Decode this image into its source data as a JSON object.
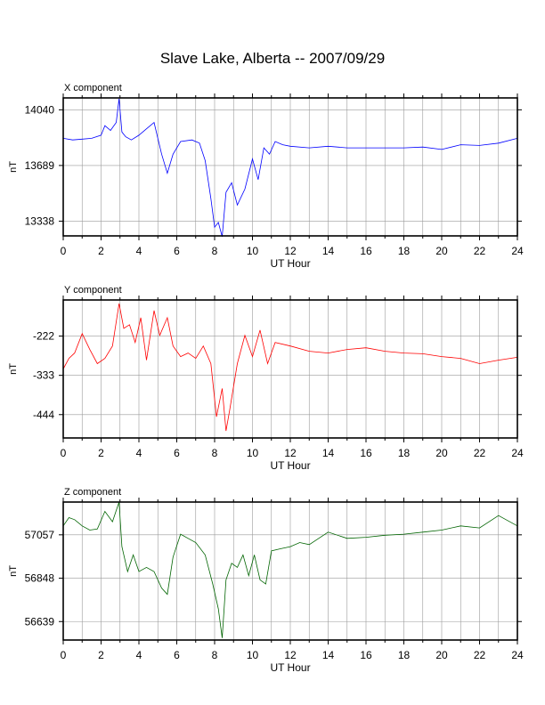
{
  "page": {
    "title": "Slave Lake, Alberta -- 2007/09/29"
  },
  "chart_data": [
    {
      "type": "line",
      "title": "X component",
      "xlabel": "UT Hour",
      "ylabel": "nT",
      "xlim": [
        0,
        24
      ],
      "ylim": [
        13245,
        14115
      ],
      "xticks": [
        0,
        2,
        4,
        6,
        8,
        10,
        12,
        14,
        16,
        18,
        20,
        22,
        24
      ],
      "xtick_labels": [
        "0",
        "2",
        "4",
        "6",
        "8",
        "10",
        "12",
        "14",
        "16",
        "18",
        "20",
        "22",
        "24"
      ],
      "yticks": [
        13338,
        13689,
        14040
      ],
      "ytick_labels": [
        "13338",
        "13689",
        "14040"
      ],
      "grid": true,
      "color": "#0000ff",
      "series": [
        {
          "x": [
            0,
            0.5,
            1,
            1.5,
            2,
            2.2,
            2.5,
            2.8,
            2.95,
            3.1,
            3.3,
            3.6,
            4,
            4.4,
            4.8,
            5.2,
            5.5,
            5.8,
            6.2,
            6.8,
            7.2,
            7.5,
            7.8,
            8,
            8.2,
            8.4,
            8.6,
            8.9,
            9.2,
            9.6,
            10,
            10.3,
            10.6,
            10.9,
            11.2,
            11.6,
            12,
            13,
            14,
            15,
            16,
            17,
            18,
            19,
            20,
            21,
            22,
            23,
            24
          ],
          "y": [
            13860,
            13850,
            13855,
            13860,
            13880,
            13940,
            13910,
            13960,
            14110,
            13900,
            13870,
            13850,
            13880,
            13920,
            13960,
            13760,
            13640,
            13760,
            13840,
            13850,
            13830,
            13720,
            13480,
            13300,
            13330,
            13240,
            13520,
            13580,
            13440,
            13540,
            13730,
            13600,
            13800,
            13760,
            13840,
            13820,
            13810,
            13800,
            13810,
            13800,
            13800,
            13800,
            13800,
            13805,
            13790,
            13820,
            13815,
            13830,
            13860
          ]
        }
      ]
    },
    {
      "type": "line",
      "title": "Y component",
      "xlabel": "UT Hour",
      "ylabel": "nT",
      "xlim": [
        0,
        24
      ],
      "ylim": [
        -510,
        -120
      ],
      "xticks": [
        0,
        2,
        4,
        6,
        8,
        10,
        12,
        14,
        16,
        18,
        20,
        22,
        24
      ],
      "xtick_labels": [
        "0",
        "2",
        "4",
        "6",
        "8",
        "10",
        "12",
        "14",
        "16",
        "18",
        "20",
        "22",
        "24"
      ],
      "yticks": [
        -222,
        -333,
        -444
      ],
      "ytick_labels": [
        "-222",
        "-333",
        "-444"
      ],
      "grid": true,
      "color": "#ff0000",
      "series": [
        {
          "x": [
            0,
            0.3,
            0.6,
            1,
            1.4,
            1.8,
            2.2,
            2.6,
            2.95,
            3.2,
            3.5,
            3.8,
            4.1,
            4.4,
            4.8,
            5.1,
            5.5,
            5.8,
            6.2,
            6.6,
            7,
            7.4,
            7.8,
            8.1,
            8.4,
            8.6,
            8.8,
            9.2,
            9.6,
            10,
            10.4,
            10.8,
            11.2,
            12,
            13,
            14,
            15,
            16,
            17,
            18,
            19,
            20,
            21,
            22,
            23,
            24
          ],
          "y": [
            -315,
            -285,
            -270,
            -215,
            -260,
            -300,
            -285,
            -250,
            -130,
            -200,
            -190,
            -240,
            -170,
            -290,
            -150,
            -220,
            -170,
            -250,
            -280,
            -270,
            -285,
            -250,
            -300,
            -450,
            -370,
            -490,
            -430,
            -300,
            -220,
            -280,
            -205,
            -300,
            -240,
            -250,
            -265,
            -270,
            -260,
            -255,
            -265,
            -270,
            -272,
            -280,
            -285,
            -300,
            -290,
            -282
          ]
        }
      ]
    },
    {
      "type": "line",
      "title": "Z component",
      "xlabel": "UT Hour",
      "ylabel": "nT",
      "xlim": [
        0,
        24
      ],
      "ylim": [
        56550,
        57215
      ],
      "xticks": [
        0,
        2,
        4,
        6,
        8,
        10,
        12,
        14,
        16,
        18,
        20,
        22,
        24
      ],
      "xtick_labels": [
        "0",
        "2",
        "4",
        "6",
        "8",
        "10",
        "12",
        "14",
        "16",
        "18",
        "20",
        "22",
        "24"
      ],
      "yticks": [
        56639,
        56848,
        57057
      ],
      "ytick_labels": [
        "56639",
        "56848",
        "57057"
      ],
      "grid": true,
      "color": "#006400",
      "series": [
        {
          "x": [
            0,
            0.3,
            0.6,
            1,
            1.4,
            1.8,
            2.2,
            2.6,
            2.95,
            3.1,
            3.4,
            3.7,
            4,
            4.4,
            4.8,
            5.2,
            5.5,
            5.8,
            6.2,
            6.6,
            7,
            7.5,
            7.9,
            8.2,
            8.4,
            8.6,
            8.9,
            9.2,
            9.5,
            9.8,
            10.1,
            10.4,
            10.7,
            11,
            11.5,
            12,
            12.5,
            13,
            13.5,
            14,
            15,
            16,
            17,
            18,
            19,
            20,
            21,
            22,
            23,
            24
          ],
          "y": [
            57100,
            57140,
            57130,
            57100,
            57080,
            57085,
            57170,
            57120,
            57215,
            57000,
            56880,
            56960,
            56880,
            56900,
            56880,
            56800,
            56770,
            56950,
            57060,
            57040,
            57020,
            56960,
            56820,
            56700,
            56560,
            56840,
            56920,
            56900,
            56960,
            56860,
            56960,
            56840,
            56820,
            56980,
            56990,
            57000,
            57020,
            57010,
            57040,
            57070,
            57040,
            57045,
            57055,
            57060,
            57070,
            57080,
            57100,
            57090,
            57150,
            57100
          ]
        }
      ]
    }
  ]
}
